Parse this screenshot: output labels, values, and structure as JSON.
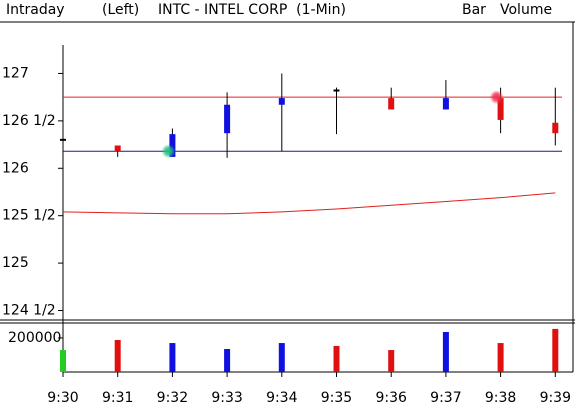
{
  "chart_data": {
    "type": "candlestick",
    "title": "INTC - INTEL CORP  (1-Min)",
    "header": {
      "mode": "Intraday",
      "axis": "(Left)",
      "style": "Bar",
      "study": "Volume"
    },
    "study_color": "#22cc22",
    "categories": [
      "9:30",
      "9:31",
      "9:32",
      "9:33",
      "9:34",
      "9:35",
      "9:36",
      "9:37",
      "9:38",
      "9:39"
    ],
    "open": [
      126.3,
      126.24,
      126.12,
      126.37,
      126.67,
      126.82,
      126.74,
      126.62,
      126.74,
      126.48
    ],
    "high": [
      126.35,
      126.24,
      126.42,
      126.8,
      127.0,
      126.85,
      126.85,
      126.93,
      126.85,
      126.85
    ],
    "low": [
      126.14,
      126.12,
      126.12,
      126.11,
      126.18,
      126.36,
      126.62,
      126.62,
      126.37,
      126.24
    ],
    "close": [
      126.3,
      126.18,
      126.36,
      126.67,
      126.74,
      126.82,
      126.62,
      126.74,
      126.51,
      126.37
    ],
    "up_color": "#1010e0",
    "down_color": "#e01010",
    "flat_color": "#000000",
    "ylim": [
      124.4,
      127.3
    ],
    "yticks": [
      {
        "value": 124.5,
        "label": "124 1/2"
      },
      125,
      {
        "value": 125.5,
        "label": "125 1/2"
      },
      126,
      {
        "value": 126.5,
        "label": "126 1/2"
      },
      127
    ],
    "hlines": [
      {
        "value": 126.75,
        "color": "#e02020"
      },
      {
        "value": 126.18,
        "color": "#1a1a90"
      }
    ],
    "ma": {
      "color": "#e02020",
      "values": [
        125.54,
        125.53,
        125.52,
        125.52,
        125.54,
        125.57,
        125.61,
        125.65,
        125.69,
        125.74
      ]
    },
    "markers": [
      {
        "x": "9:32",
        "value": 126.18,
        "color": "#20c080"
      },
      {
        "x": "9:38",
        "value": 126.75,
        "color": "#f03050"
      }
    ],
    "volume": {
      "values": [
        129000,
        188000,
        170000,
        135000,
        170000,
        153000,
        129000,
        235000,
        170000,
        253000
      ],
      "colors": [
        "#22cc22",
        "#e01010",
        "#1010e0",
        "#1010e0",
        "#1010e0",
        "#e01010",
        "#e01010",
        "#1010e0",
        "#e01010",
        "#e01010"
      ],
      "ylim": [
        0,
        276000
      ],
      "yticks": [
        200000
      ]
    }
  }
}
